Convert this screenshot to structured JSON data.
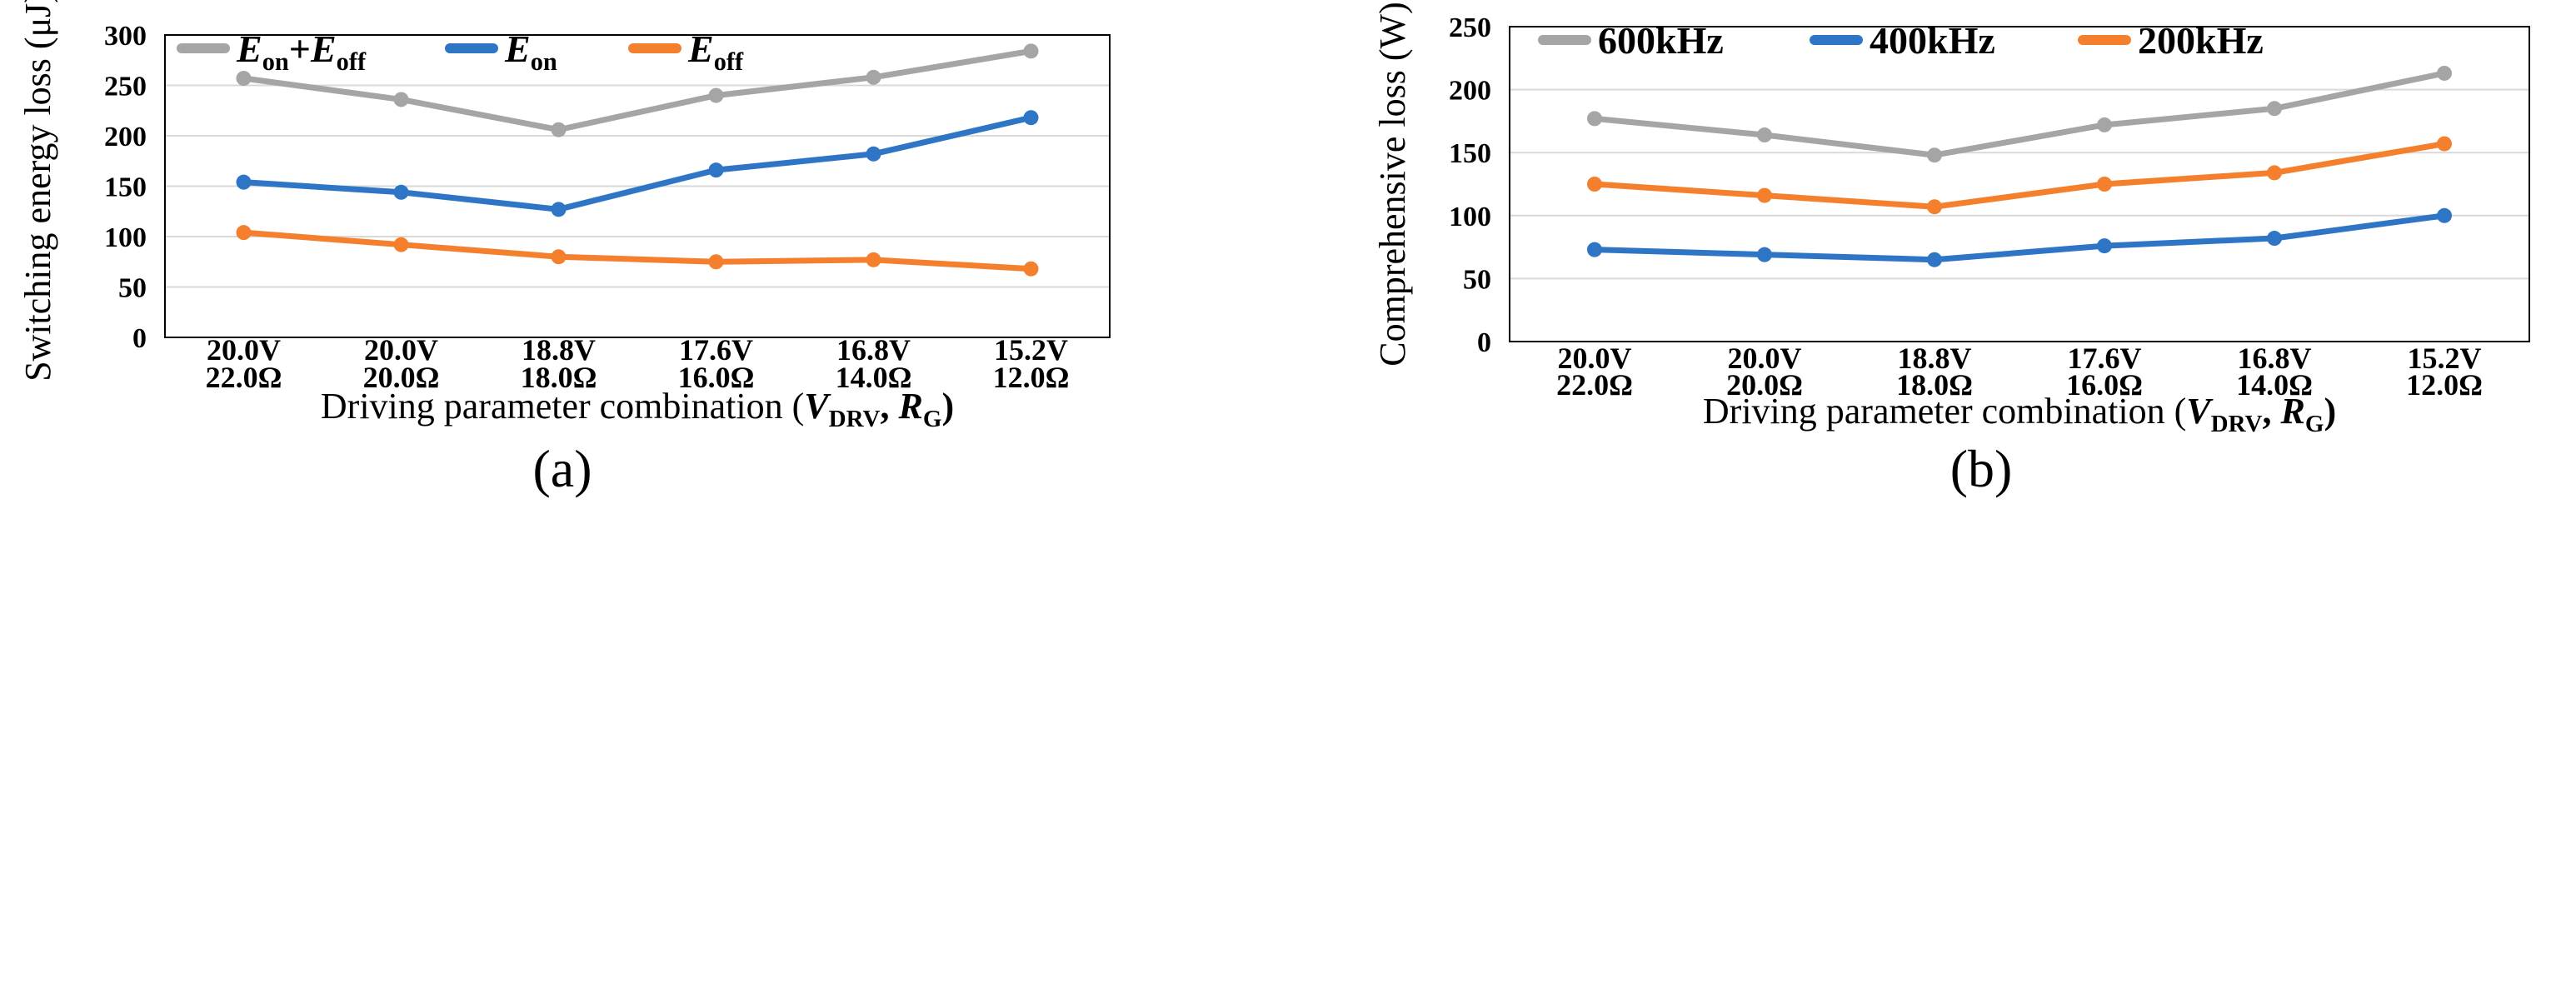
{
  "chart_data": [
    {
      "type": "line",
      "panel_label": "(a)",
      "categories": [
        [
          "20.0V",
          "22.0Ω"
        ],
        [
          "20.0V",
          "20.0Ω"
        ],
        [
          "18.8V",
          "18.0Ω"
        ],
        [
          "17.6V",
          "16.0Ω"
        ],
        [
          "16.8V",
          "14.0Ω"
        ],
        [
          "15.2V",
          "12.0Ω"
        ]
      ],
      "series": [
        {
          "name": "E_on+E_off",
          "color": "#a5a5a5",
          "values": [
            257,
            236,
            206,
            240,
            258,
            284
          ]
        },
        {
          "name": "E_on",
          "color": "#2e75c5",
          "values": [
            154,
            144,
            127,
            166,
            182,
            218
          ]
        },
        {
          "name": "E_off",
          "color": "#f4802e",
          "values": [
            104,
            92,
            80,
            75,
            77,
            68
          ]
        }
      ],
      "legend_labels": [
        [
          {
            "t": "E",
            "it": true
          },
          {
            "t": "on",
            "sub": true
          },
          {
            "t": "+"
          },
          {
            "t": "E",
            "it": true
          },
          {
            "t": "off",
            "sub": true
          }
        ],
        [
          {
            "t": "E",
            "it": true
          },
          {
            "t": "on",
            "sub": true
          }
        ],
        [
          {
            "t": "E",
            "it": true
          },
          {
            "t": "off",
            "sub": true
          }
        ]
      ],
      "ylim": [
        0,
        300
      ],
      "yticks": [
        0,
        50,
        100,
        150,
        200,
        250,
        300
      ],
      "ylabel": "Switching energy loss (μJ)",
      "xlabel_text": "Driving parameter combination",
      "xlabel_vars": {
        "v": "V",
        "v_sub": "DRV",
        "r": "R",
        "r_sub": "G"
      },
      "grid": true,
      "legend_position": "top"
    },
    {
      "type": "line",
      "panel_label": "(b)",
      "categories": [
        [
          "20.0V",
          "22.0Ω"
        ],
        [
          "20.0V",
          "20.0Ω"
        ],
        [
          "18.8V",
          "18.0Ω"
        ],
        [
          "17.6V",
          "16.0Ω"
        ],
        [
          "16.8V",
          "14.0Ω"
        ],
        [
          "15.2V",
          "12.0Ω"
        ]
      ],
      "series": [
        {
          "name": "600kHz",
          "color": "#a5a5a5",
          "values": [
            177,
            164,
            148,
            172,
            185,
            213
          ]
        },
        {
          "name": "400kHz",
          "color": "#2e75c5",
          "values": [
            73,
            69,
            65,
            76,
            82,
            100
          ]
        },
        {
          "name": "200kHz",
          "color": "#f4802e",
          "values": [
            125,
            116,
            107,
            125,
            134,
            157
          ]
        }
      ],
      "legend_labels": [
        [
          {
            "t": "600kHz"
          }
        ],
        [
          {
            "t": "400kHz"
          }
        ],
        [
          {
            "t": "200kHz"
          }
        ]
      ],
      "ylim": [
        0,
        250
      ],
      "yticks": [
        0,
        50,
        100,
        150,
        200,
        250
      ],
      "ylabel": "Comprehensive loss (W)",
      "xlabel_text": "Driving parameter combination",
      "xlabel_vars": {
        "v": "V",
        "v_sub": "DRV",
        "r": "R",
        "r_sub": "G"
      },
      "grid": true,
      "legend_position": "top"
    }
  ]
}
